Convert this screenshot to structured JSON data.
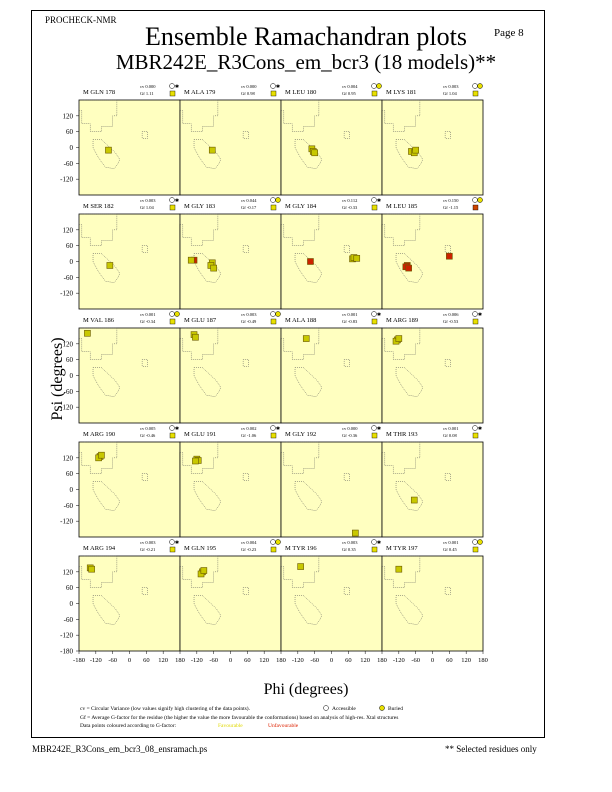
{
  "header": {
    "program": "PROCHECK-NMR",
    "page_label": "Page  8",
    "title": "Ensemble Ramachandran plots",
    "subtitle": "MBR242E_R3Cons_em_bcr3 (18 models)**"
  },
  "axes": {
    "xlabel": "Phi (degrees)",
    "ylabel": "Psi (degrees)"
  },
  "legend": {
    "line1": "cv = Circular Variance (low values signify high clustering of the data points).",
    "accessible": "Accessible",
    "buried": "Buried",
    "line2": "Gf = Average G-factor for the residue (the higher the value the more favourable the conformations) based on analysis of high-res. Xtal structures",
    "line3": "Data points coloured according to G-factor:",
    "favourable": "Favourable",
    "unfavourable": "Unfavourable"
  },
  "footer": {
    "left": "MBR242E_R3Cons_em_bcr3_08_ensramach.ps",
    "right": "** Selected residues only"
  },
  "colors": {
    "panel_bg": "#ffffc0",
    "point_fill": "#c8c800",
    "point_edge": "#6b5a00",
    "unfavourable": "#cc2200",
    "favourable_text": "#e8e800",
    "unfavourable_text": "#dd2200"
  },
  "chart_data": {
    "type": "scatter",
    "xlim": [
      -180,
      180
    ],
    "ylim": [
      -180,
      180
    ],
    "xticks": [
      "-180",
      "-120",
      "-60",
      "0",
      "60",
      "120",
      "180"
    ],
    "yticks": [
      "120",
      "60",
      "0",
      "-60",
      "-120"
    ],
    "yticks_last": [
      "120",
      "60",
      "0",
      "-60",
      "-120",
      "-180"
    ],
    "panels": [
      {
        "label": "M GLN 178",
        "cv": "cv 0.000",
        "gf": "Gf  1.11",
        "access": "accessible",
        "color": "fav",
        "points": [
          [
            -75,
            -10
          ]
        ]
      },
      {
        "label": "M ALA 179",
        "cv": "cv 0.000",
        "gf": "Gf  0.98",
        "access": "accessible",
        "color": "fav",
        "points": [
          [
            -65,
            -10
          ]
        ]
      },
      {
        "label": "M LEU 180",
        "cv": "cv 0.004",
        "gf": "Gf  0.95",
        "access": "buried",
        "color": "fav",
        "points": [
          [
            -70,
            -5
          ],
          [
            -65,
            -15
          ],
          [
            -60,
            -20
          ]
        ]
      },
      {
        "label": "M LYS 181",
        "cv": "cv 0.003",
        "gf": "Gf  1.04",
        "access": "buried",
        "color": "fav",
        "points": [
          [
            -75,
            -15
          ],
          [
            -65,
            -20
          ],
          [
            -60,
            -10
          ]
        ]
      },
      {
        "label": "M SER 182",
        "cv": "cv 0.003",
        "gf": "Gf  1.04",
        "access": "accessible",
        "color": "fav",
        "points": [
          [
            -70,
            -15
          ]
        ]
      },
      {
        "label": "M GLY 183",
        "cv": "cv 0.044",
        "gf": "Gf -0.17",
        "access": "buried",
        "color": "mixed",
        "points": [
          [
            -130,
            5
          ],
          [
            -140,
            5
          ],
          [
            -65,
            -5
          ],
          [
            -70,
            -15
          ],
          [
            -60,
            -25
          ]
        ]
      },
      {
        "label": "M GLY 184",
        "cv": "cv 0.112",
        "gf": "Gf -0.33",
        "access": "accessible",
        "color": "mixed",
        "points": [
          [
            -75,
            0
          ],
          [
            75,
            10
          ],
          [
            80,
            15
          ],
          [
            90,
            12
          ]
        ]
      },
      {
        "label": "M LEU 185",
        "cv": "cv 0.150",
        "gf": "Gf -1.15",
        "access": "buried",
        "color": "unfav",
        "points": [
          [
            -90,
            -15
          ],
          [
            -95,
            -20
          ],
          [
            -85,
            -25
          ],
          [
            60,
            20
          ]
        ]
      },
      {
        "label": "M VAL 186",
        "cv": "cv 0.001",
        "gf": "Gf -0.34",
        "access": "buried",
        "color": "fav",
        "points": [
          [
            -150,
            160
          ]
        ]
      },
      {
        "label": "M GLU 187",
        "cv": "cv 0.003",
        "gf": "Gf -0.49",
        "access": "buried",
        "color": "fav",
        "points": [
          [
            -130,
            155
          ],
          [
            -125,
            145
          ]
        ]
      },
      {
        "label": "M ALA 188",
        "cv": "cv 0.001",
        "gf": "Gf -0.83",
        "access": "accessible",
        "color": "fav",
        "points": [
          [
            -90,
            140
          ]
        ]
      },
      {
        "label": "M ARG 189",
        "cv": "cv 0.006",
        "gf": "Gf -0.53",
        "access": "accessible",
        "color": "fav",
        "points": [
          [
            -125,
            135
          ],
          [
            -130,
            130
          ],
          [
            -120,
            140
          ]
        ]
      },
      {
        "label": "M ARG 190",
        "cv": "cv 0.005",
        "gf": "Gf -0.46",
        "access": "accessible",
        "color": "fav",
        "points": [
          [
            -105,
            125
          ],
          [
            -110,
            120
          ],
          [
            -100,
            130
          ]
        ]
      },
      {
        "label": "M GLU 191",
        "cv": "cv 0.002",
        "gf": "Gf -1.06",
        "access": "accessible",
        "color": "fav",
        "points": [
          [
            -120,
            115
          ],
          [
            -115,
            110
          ],
          [
            -125,
            108
          ]
        ]
      },
      {
        "label": "M GLY 192",
        "cv": "cv 0.000",
        "gf": "Gf -0.36",
        "access": "accessible",
        "color": "fav",
        "points": [
          [
            85,
            -165
          ]
        ]
      },
      {
        "label": "M THR 193",
        "cv": "cv 0.001",
        "gf": "Gf  0.08",
        "access": "accessible",
        "color": "fav",
        "points": [
          [
            -65,
            -40
          ]
        ]
      },
      {
        "label": "M ARG 194",
        "cv": "cv 0.003",
        "gf": "Gf -0.21",
        "access": "accessible",
        "color": "fav",
        "points": [
          [
            -140,
            135
          ],
          [
            -135,
            130
          ]
        ]
      },
      {
        "label": "M GLN 195",
        "cv": "cv 0.004",
        "gf": "Gf -0.23",
        "access": "buried",
        "color": "fav",
        "points": [
          [
            -100,
            120
          ],
          [
            -105,
            112
          ],
          [
            -95,
            125
          ]
        ]
      },
      {
        "label": "M TYR 196",
        "cv": "cv 0.003",
        "gf": "Gf  0.35",
        "access": "accessible",
        "color": "fav",
        "points": [
          [
            -110,
            140
          ]
        ]
      },
      {
        "label": "M TYR 197",
        "cv": "cv 0.001",
        "gf": "Gf  0.45",
        "access": "buried",
        "color": "fav",
        "points": [
          [
            -120,
            130
          ]
        ]
      }
    ]
  }
}
